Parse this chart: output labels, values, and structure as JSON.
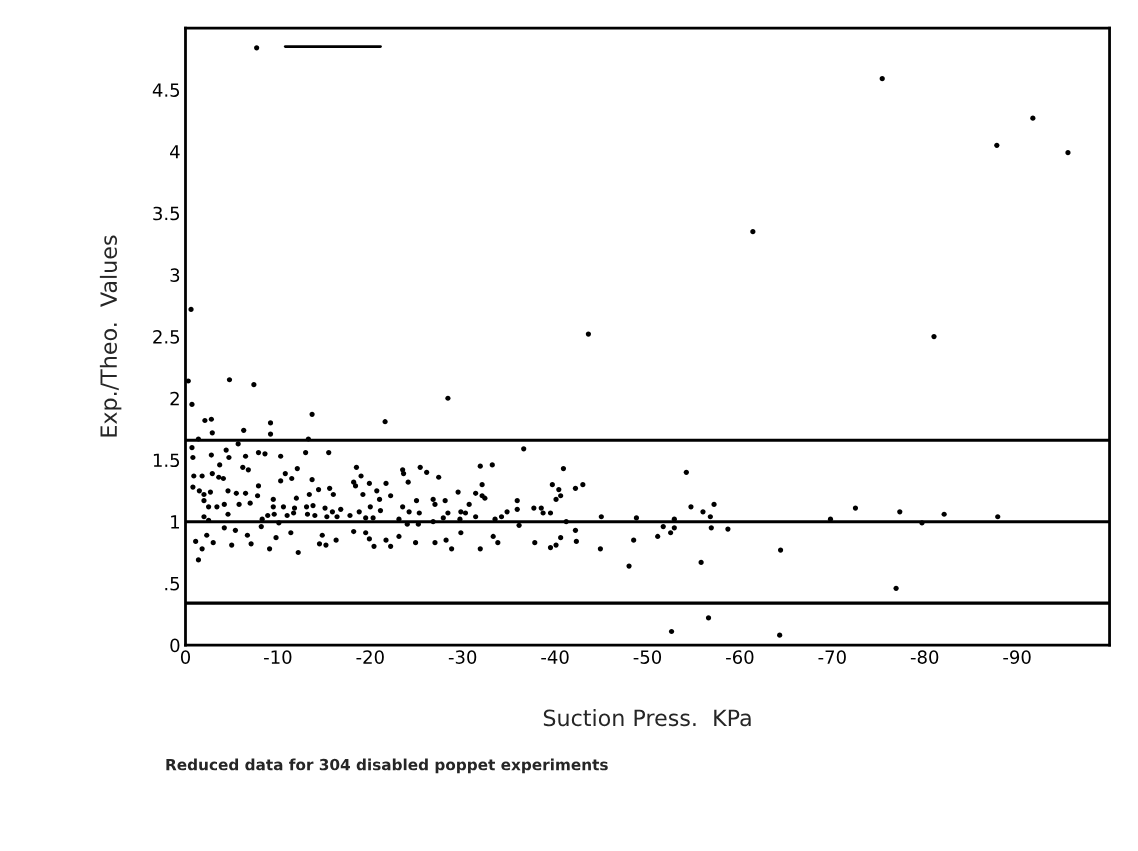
{
  "chart_data": {
    "type": "scatter",
    "xlabel": "Suction Press.  KPa",
    "ylabel": "Exp./Theo.  Values",
    "annotations": [
      "Reduced data for 304 disabled poppet experiments"
    ],
    "xlim": [
      0,
      -100
    ],
    "ylim": [
      0,
      5.0
    ],
    "xticks": [
      0,
      -10,
      -20,
      -30,
      -40,
      -50,
      -60,
      -70,
      -80,
      -90
    ],
    "yticks": [
      0,
      {
        "value": 0.5,
        "label": ".5"
      },
      1,
      1.5,
      2,
      2.5,
      3,
      3.5,
      4,
      4.5
    ],
    "grid": false,
    "legend": false,
    "ref_lines": [
      {
        "axis": "y",
        "value": 1.66,
        "color": "#000000"
      },
      {
        "axis": "y",
        "value": 1.0,
        "color": "#000000"
      },
      {
        "axis": "y",
        "value": 0.34,
        "color": "#000000"
      }
    ],
    "series": [
      {
        "color": "#000000",
        "marker": "circle",
        "x": [
          -0.3,
          -4.76,
          -7.4,
          -0.7,
          -2.1,
          -2.8,
          -2.9,
          -6.3,
          -9.2,
          -9.2,
          -13.7,
          -21.6,
          -28.4,
          -13.3,
          -1.4,
          -0.7,
          -0.8,
          -2.8,
          -4.4,
          -4.7,
          -5.7,
          -6.5,
          -7.9,
          -8.6,
          -10.3,
          -13.0,
          -15.5,
          -3.7,
          -6.2,
          -6.8,
          -0.9,
          -1.8,
          -2.9,
          -3.6,
          -4.1,
          -10.8,
          -12.1,
          -11.5,
          -10.3,
          -13.7,
          -0.8,
          -1.5,
          -2.0,
          -2.7,
          -4.6,
          -5.5,
          -6.5,
          -7.9,
          -7.8,
          -12.0,
          -13.4,
          -14.4,
          -15.6,
          -16.0,
          -2.0,
          -2.5,
          -3.4,
          -4.2,
          -5.8,
          -7.0,
          -9.5,
          -9.5,
          -10.6,
          -11.8,
          -13.1,
          -13.8,
          -15.1,
          -15.9,
          -2.0,
          -2.5,
          -4.6,
          -8.3,
          -8.9,
          -9.6,
          -11.0,
          -11.7,
          -13.2,
          -14.0,
          -15.3,
          -16.4,
          -4.2,
          -5.4,
          -8.2,
          -10.1,
          -1.1,
          -1.8,
          -1.4,
          -2.3,
          -3.0,
          -5.0,
          -6.7,
          -7.1,
          -9.1,
          -9.8,
          -11.4,
          -12.2,
          -14.5,
          -15.2,
          -16.3,
          -14.8,
          -18.5,
          -19.0,
          -18.2,
          -18.4,
          -19.2,
          -19.9,
          -20.7,
          -21.7,
          -21.0,
          -22.2,
          -20.0,
          -21.1,
          -17.8,
          -18.8,
          -16.8,
          -19.5,
          -20.3,
          -23.5,
          -23.6,
          -24.1,
          -23.5,
          -24.2,
          -25.0,
          -25.3,
          -25.4,
          -26.1,
          -27.4,
          -26.8,
          -27.0,
          -27.9,
          -28.1,
          -28.4,
          -23.1,
          -24.0,
          -25.2,
          -26.8,
          -18.2,
          -19.5,
          -19.9,
          -20.4,
          -21.7,
          -22.2,
          -23.1,
          -24.9,
          -27.0,
          -28.2,
          -36.6,
          -31.9,
          -33.2,
          -32.1,
          -29.5,
          -31.4,
          -32.1,
          -32.4,
          -30.7,
          -29.8,
          -30.3,
          -29.7,
          -31.4,
          -33.5,
          -34.2,
          -34.8,
          -35.9,
          -35.9,
          -37.7,
          -38.5,
          -38.7,
          -39.5,
          -39.7,
          -40.4,
          -40.6,
          -40.1,
          -40.9,
          -42.2,
          -43.0,
          -45.0,
          -48.8,
          -41.2,
          -36.1,
          -28.8,
          -29.8,
          -31.9,
          -33.3,
          -33.8,
          -37.8,
          -39.5,
          -40.1,
          -40.6,
          -42.2,
          -42.3,
          -44.9,
          -48.5,
          -48.0,
          -51.1,
          -51.7,
          -52.5,
          -52.9,
          -52.9,
          -54.2,
          -54.7,
          -56.0,
          -56.8,
          -57.2,
          -56.9,
          -58.7,
          -55.8,
          -56.6,
          -52.6,
          -69.8,
          -72.5,
          -77.3,
          -79.7,
          -82.1,
          -87.9,
          -64.4,
          -76.9,
          -64.3,
          -75.4,
          -91.7,
          -87.8,
          -95.5,
          -61.4,
          -43.6,
          -81.0,
          -0.6,
          -7.7
        ],
        "values": [
          2.14,
          2.15,
          2.11,
          1.95,
          1.82,
          1.83,
          1.72,
          1.74,
          1.8,
          1.71,
          1.87,
          1.81,
          2.0,
          1.67,
          1.67,
          1.6,
          1.52,
          1.54,
          1.58,
          1.52,
          1.63,
          1.53,
          1.56,
          1.55,
          1.53,
          1.56,
          1.56,
          1.46,
          1.44,
          1.42,
          1.37,
          1.37,
          1.39,
          1.36,
          1.35,
          1.39,
          1.43,
          1.35,
          1.33,
          1.34,
          1.28,
          1.25,
          1.22,
          1.24,
          1.25,
          1.23,
          1.23,
          1.29,
          1.21,
          1.19,
          1.22,
          1.26,
          1.27,
          1.22,
          1.17,
          1.12,
          1.12,
          1.14,
          1.14,
          1.15,
          1.18,
          1.12,
          1.12,
          1.11,
          1.12,
          1.13,
          1.11,
          1.08,
          1.04,
          1.01,
          1.06,
          1.02,
          1.05,
          1.06,
          1.05,
          1.07,
          1.06,
          1.05,
          1.04,
          1.04,
          0.95,
          0.93,
          0.96,
          0.99,
          0.84,
          0.78,
          0.69,
          0.89,
          0.83,
          0.81,
          0.89,
          0.82,
          0.78,
          0.87,
          0.91,
          0.75,
          0.82,
          0.81,
          0.85,
          0.89,
          1.44,
          1.37,
          1.32,
          1.29,
          1.22,
          1.31,
          1.25,
          1.31,
          1.18,
          1.21,
          1.12,
          1.09,
          1.05,
          1.08,
          1.1,
          1.03,
          1.03,
          1.42,
          1.39,
          1.32,
          1.12,
          1.08,
          1.17,
          1.07,
          1.44,
          1.4,
          1.36,
          1.18,
          1.14,
          1.03,
          1.17,
          1.07,
          1.02,
          0.98,
          0.98,
          1.0,
          0.92,
          0.91,
          0.86,
          0.8,
          0.85,
          0.8,
          0.88,
          0.83,
          0.83,
          0.85,
          1.59,
          1.45,
          1.46,
          1.3,
          1.24,
          1.23,
          1.21,
          1.19,
          1.14,
          1.08,
          1.07,
          1.02,
          1.04,
          1.02,
          1.04,
          1.08,
          1.17,
          1.1,
          1.11,
          1.11,
          1.07,
          1.07,
          1.3,
          1.26,
          1.21,
          1.18,
          1.43,
          1.27,
          1.3,
          1.04,
          1.03,
          1.0,
          0.97,
          0.78,
          0.91,
          0.78,
          0.88,
          0.83,
          0.83,
          0.79,
          0.81,
          0.87,
          0.93,
          0.84,
          0.78,
          0.85,
          0.64,
          0.88,
          0.96,
          0.91,
          1.02,
          0.95,
          1.4,
          1.12,
          1.08,
          1.04,
          1.14,
          0.95,
          0.94,
          0.67,
          0.22,
          0.11,
          1.02,
          1.11,
          1.08,
          0.99,
          1.06,
          1.04,
          0.77,
          0.46,
          0.08,
          4.59,
          4.27,
          4.05,
          3.99,
          3.35,
          2.52,
          2.5,
          2.72,
          4.84
        ]
      },
      {
        "type": "line",
        "marker": "none",
        "color": "#000000",
        "x": [
          -10.8,
          -21.1
        ],
        "values": [
          4.85,
          4.85
        ]
      }
    ]
  }
}
